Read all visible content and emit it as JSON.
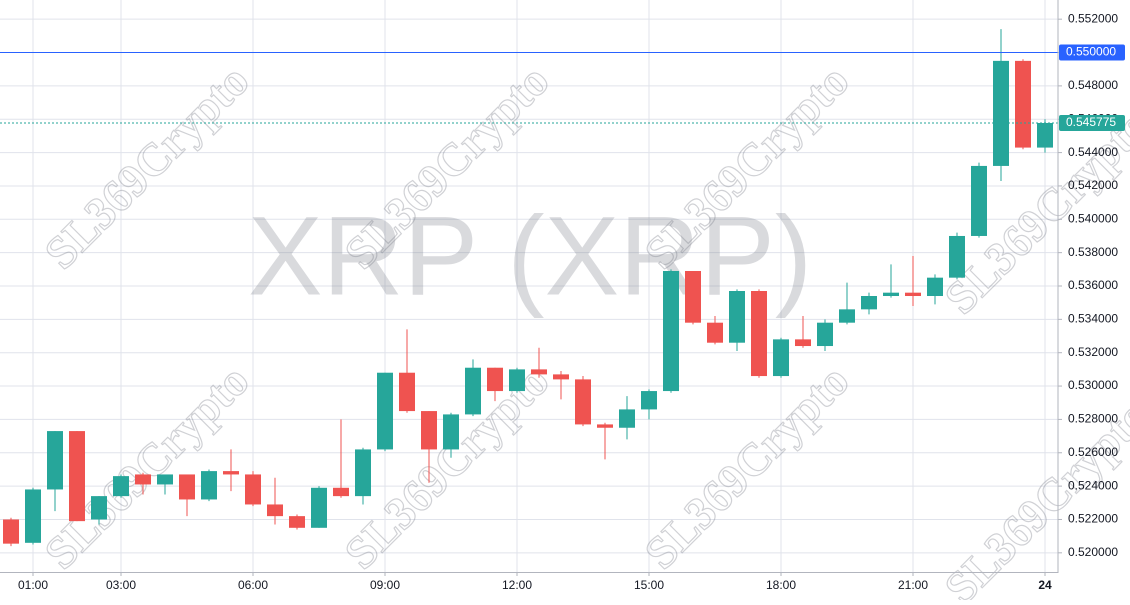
{
  "chart_data": {
    "type": "candlestick",
    "title": "XRP (XRP)",
    "watermark": "SL369Crypto",
    "categories": [
      null,
      "01:00",
      null,
      null,
      null,
      "03:00",
      null,
      null,
      null,
      null,
      null,
      "06:00",
      null,
      null,
      null,
      null,
      null,
      "09:00",
      null,
      null,
      null,
      null,
      null,
      "12:00",
      null,
      null,
      null,
      null,
      null,
      "15:00",
      null,
      null,
      null,
      null,
      null,
      "18:00",
      null,
      null,
      null,
      null,
      null,
      "21:00",
      null,
      null,
      null,
      null,
      null,
      "24"
    ],
    "series": [
      {
        "up_color": "#26a69a",
        "down_color": "#ef5350",
        "open": [
          0.522,
          0.5206,
          0.5238,
          0.5273,
          0.522,
          0.5234,
          0.5247,
          0.5241,
          0.5247,
          0.5232,
          0.5249,
          0.5247,
          0.5229,
          0.5222,
          0.5215,
          0.5239,
          0.5234,
          0.5262,
          0.5308,
          0.5285,
          0.5262,
          0.5283,
          0.5311,
          0.5297,
          0.531,
          0.5307,
          0.5304,
          0.5277,
          0.5275,
          0.5286,
          0.5297,
          0.5369,
          0.5338,
          0.5326,
          0.5357,
          0.5306,
          0.5328,
          0.5324,
          0.5338,
          0.5346,
          0.5354,
          0.5356,
          0.5354,
          0.5365,
          0.539,
          0.5432,
          0.5495,
          0.5443
        ],
        "high": [
          0.5221,
          0.5239,
          0.5273,
          0.5273,
          0.5234,
          0.5247,
          0.5248,
          0.5247,
          0.5247,
          0.525,
          0.5262,
          0.5249,
          0.5245,
          0.5223,
          0.524,
          0.528,
          0.5263,
          0.5308,
          0.5334,
          0.5285,
          0.5284,
          0.5316,
          0.5311,
          0.5311,
          0.5323,
          0.5309,
          0.5306,
          0.5278,
          0.5294,
          0.5298,
          0.537,
          0.5369,
          0.5342,
          0.5358,
          0.5358,
          0.5329,
          0.5342,
          0.534,
          0.5362,
          0.5356,
          0.5373,
          0.5378,
          0.5367,
          0.5392,
          0.5434,
          0.5514,
          0.5496,
          0.546
        ],
        "low": [
          0.5204,
          0.5205,
          0.5225,
          0.5219,
          0.5217,
          0.5233,
          0.5235,
          0.5235,
          0.5222,
          0.5231,
          0.5237,
          0.5228,
          0.5217,
          0.5214,
          0.5215,
          0.5233,
          0.5229,
          0.5261,
          0.5284,
          0.5242,
          0.5257,
          0.5282,
          0.5291,
          0.5296,
          0.5305,
          0.5292,
          0.5276,
          0.5256,
          0.5268,
          0.528,
          0.5296,
          0.5337,
          0.5325,
          0.5321,
          0.5305,
          0.5305,
          0.5323,
          0.5321,
          0.5337,
          0.5343,
          0.5353,
          0.5348,
          0.5349,
          0.5364,
          0.5389,
          0.5423,
          0.5442,
          0.544
        ],
        "close": [
          0.52055,
          0.5238,
          0.5273,
          0.5219,
          0.5234,
          0.5246,
          0.5241,
          0.5247,
          0.5232,
          0.5249,
          0.5247,
          0.5229,
          0.5222,
          0.5215,
          0.5239,
          0.5234,
          0.5262,
          0.5308,
          0.5285,
          0.5262,
          0.5283,
          0.5311,
          0.5297,
          0.531,
          0.5307,
          0.5304,
          0.5277,
          0.5275,
          0.5286,
          0.5297,
          0.5369,
          0.5338,
          0.5326,
          0.5357,
          0.5306,
          0.5328,
          0.5324,
          0.5338,
          0.5346,
          0.5354,
          0.5356,
          0.5354,
          0.5365,
          0.539,
          0.5432,
          0.5495,
          0.5443,
          0.545775
        ]
      }
    ],
    "ylim": [
      0.51885,
      0.55315
    ],
    "yticks": [
      {
        "value": 0.52,
        "label": "0.520000"
      },
      {
        "value": 0.522,
        "label": "0.522000"
      },
      {
        "value": 0.524,
        "label": "0.524000"
      },
      {
        "value": 0.526,
        "label": "0.526000"
      },
      {
        "value": 0.528,
        "label": "0.528000"
      },
      {
        "value": 0.53,
        "label": "0.530000"
      },
      {
        "value": 0.532,
        "label": "0.532000"
      },
      {
        "value": 0.534,
        "label": "0.534000"
      },
      {
        "value": 0.536,
        "label": "0.536000"
      },
      {
        "value": 0.538,
        "label": "0.538000"
      },
      {
        "value": 0.54,
        "label": "0.540000"
      },
      {
        "value": 0.542,
        "label": "0.542000"
      },
      {
        "value": 0.544,
        "label": "0.544000"
      },
      {
        "value": 0.546,
        "label": "0.546000"
      },
      {
        "value": 0.548,
        "label": "0.548000"
      },
      {
        "value": 0.55,
        "label": "0.550000"
      },
      {
        "value": 0.552,
        "label": "0.552000"
      }
    ],
    "price_lines": [
      {
        "value": 0.55,
        "label": "0.550000",
        "color": "#2962ff",
        "dashed": false
      },
      {
        "value": 0.545775,
        "label": "0.545775",
        "color": "#26a69a",
        "dashed": true
      }
    ],
    "grid": true
  }
}
